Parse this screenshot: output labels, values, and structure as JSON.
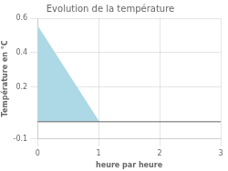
{
  "chart_data": {
    "type": "area",
    "title": "Evolution de la température",
    "x_label": "heure par heure",
    "y_label": "Température en °C",
    "x": [
      0,
      1
    ],
    "values": [
      0.55,
      0.0
    ],
    "color": "#add8e6",
    "baseline": 0.0,
    "xlim": [
      0,
      3
    ],
    "ylim": [
      -0.1,
      0.6
    ],
    "xticks": [
      0,
      1,
      2,
      3
    ],
    "yticks": [
      -0.1,
      0.2,
      0.4,
      0.6
    ],
    "grid": true
  }
}
